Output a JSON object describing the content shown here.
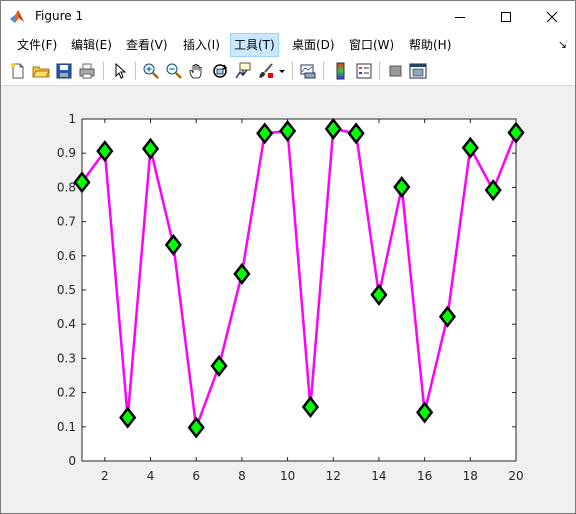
{
  "window": {
    "title": "Figure 1",
    "minimize_glyph": "—",
    "maximize_glyph": "☐",
    "close_glyph": "✕"
  },
  "menu": {
    "items": [
      "文件(F)",
      "编辑(E)",
      "查看(V)",
      "插入(I)",
      "工具(T)",
      "桌面(D)",
      "窗口(W)",
      "帮助(H)"
    ],
    "active_index": 4,
    "overflow_glyph": "↘"
  },
  "toolbar": {
    "icons": [
      "new-figure-icon",
      "open-file-icon",
      "save-icon",
      "print-icon",
      "pointer-icon",
      "zoom-in-icon",
      "zoom-out-icon",
      "pan-hand-icon",
      "rotate-3d-icon",
      "data-cursor-icon",
      "brush-icon",
      "brush-dropdown-icon",
      "link-plot-icon",
      "colorbar-icon",
      "legend-icon",
      "hide-plot-tools-icon",
      "show-plot-tools-icon"
    ]
  },
  "colors": {
    "line": "#ff00ff",
    "marker_face": "#00ff00",
    "marker_edge": "#000000",
    "axes_bg": "#ffffff",
    "figure_bg": "#f0f0f0"
  },
  "chart_data": {
    "type": "line",
    "x": [
      1,
      2,
      3,
      4,
      5,
      6,
      7,
      8,
      9,
      10,
      11,
      12,
      13,
      14,
      15,
      16,
      17,
      18,
      19,
      20
    ],
    "values": [
      0.815,
      0.906,
      0.127,
      0.913,
      0.632,
      0.098,
      0.278,
      0.547,
      0.958,
      0.965,
      0.158,
      0.971,
      0.958,
      0.486,
      0.801,
      0.142,
      0.422,
      0.916,
      0.792,
      0.96
    ],
    "marker": "diamond",
    "xlim": [
      1,
      20
    ],
    "ylim": [
      0,
      1
    ],
    "xticks": [
      2,
      4,
      6,
      8,
      10,
      12,
      14,
      16,
      18,
      20
    ],
    "yticks": [
      0,
      0.1,
      0.2,
      0.3,
      0.4,
      0.5,
      0.6,
      0.7,
      0.8,
      0.9,
      1
    ],
    "ytick_labels": [
      "0",
      "0.1",
      "0.2",
      "0.3",
      "0.4",
      "0.5",
      "0.6",
      "0.7",
      "0.8",
      "0.9",
      "1"
    ],
    "grid": false,
    "title": "",
    "xlabel": "",
    "ylabel": ""
  }
}
